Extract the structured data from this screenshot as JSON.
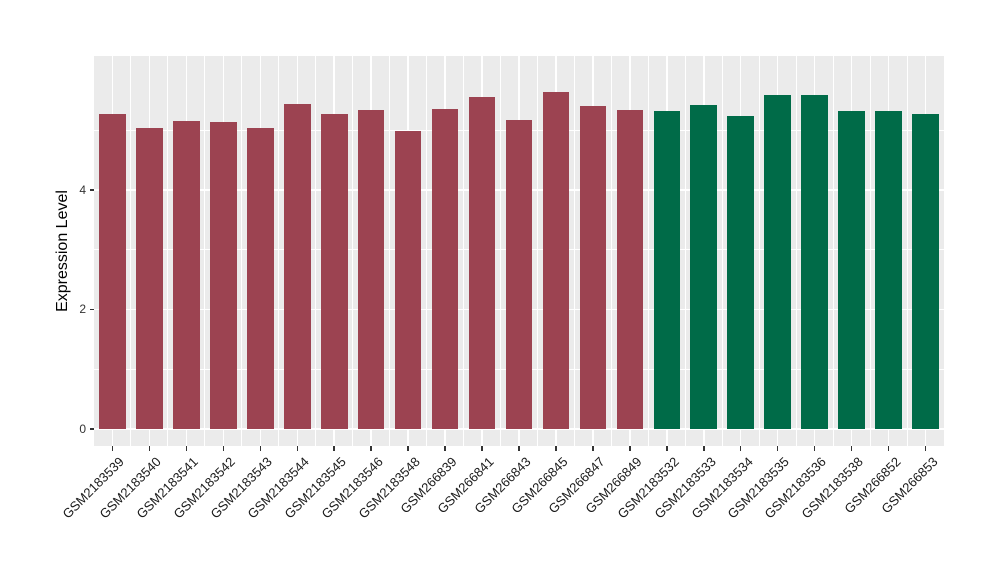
{
  "figure": {
    "background": "#FFFFFF",
    "panel_background": "#EBEBEB",
    "grid_color": "#FFFFFF",
    "axis_text_color": "#333333",
    "tick_color": "#333333"
  },
  "chart_data": {
    "type": "bar",
    "title": "",
    "xlabel": "",
    "ylabel": "Expression Level",
    "ylim": [
      0,
      5.92
    ],
    "yticks_major": [
      0,
      2,
      4
    ],
    "yticks_minor": [
      1,
      3,
      5
    ],
    "grid": "on",
    "legend": "none",
    "bar_colors": {
      "maroon": "#9C4351",
      "green": "#006B48"
    },
    "categories": [
      "GSM2183539",
      "GSM2183540",
      "GSM2183541",
      "GSM2183542",
      "GSM2183543",
      "GSM2183544",
      "GSM2183545",
      "GSM2183546",
      "GSM2183548",
      "GSM266839",
      "GSM266841",
      "GSM266843",
      "GSM266845",
      "GSM266847",
      "GSM266849",
      "GSM2183532",
      "GSM2183533",
      "GSM2183534",
      "GSM2183535",
      "GSM2183536",
      "GSM2183538",
      "GSM266852",
      "GSM266853"
    ],
    "values": [
      5.27,
      5.03,
      5.15,
      5.13,
      5.04,
      5.43,
      5.26,
      5.34,
      4.98,
      5.35,
      5.56,
      5.17,
      5.63,
      5.4,
      5.33,
      5.32,
      5.42,
      5.23,
      5.58,
      5.58,
      5.32,
      5.32,
      5.26
    ],
    "groups": [
      "maroon",
      "maroon",
      "maroon",
      "maroon",
      "maroon",
      "maroon",
      "maroon",
      "maroon",
      "maroon",
      "maroon",
      "maroon",
      "maroon",
      "maroon",
      "maroon",
      "maroon",
      "green",
      "green",
      "green",
      "green",
      "green",
      "green",
      "green",
      "green"
    ]
  }
}
